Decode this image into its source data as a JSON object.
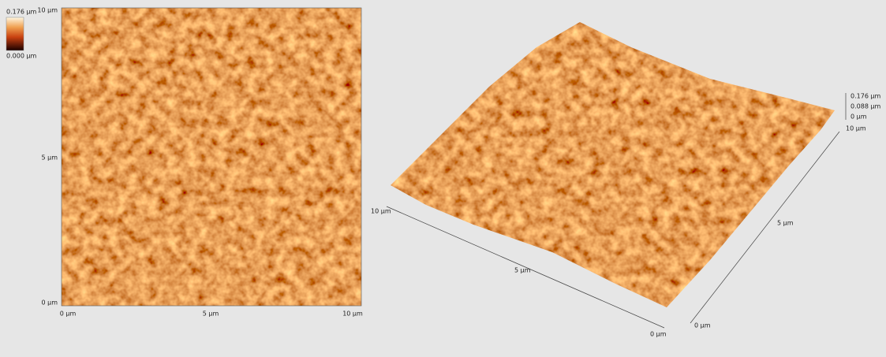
{
  "colorbar": {
    "max_label": "0.176 µm",
    "min_label": "0.000 µm"
  },
  "image2d": {
    "y_labels": [
      "10 µm",
      "5 µm",
      "0 µm"
    ],
    "x_labels": [
      "0 µm",
      "5 µm",
      "10 µm"
    ]
  },
  "image3d": {
    "x_labels": [
      "10 µm",
      "5 µm",
      "0 µm"
    ],
    "y_labels": [
      "0 µm",
      "5 µm",
      "10 µm"
    ],
    "z_labels": [
      "0.176 µm",
      "0.088 µm",
      "0 µm"
    ]
  }
}
